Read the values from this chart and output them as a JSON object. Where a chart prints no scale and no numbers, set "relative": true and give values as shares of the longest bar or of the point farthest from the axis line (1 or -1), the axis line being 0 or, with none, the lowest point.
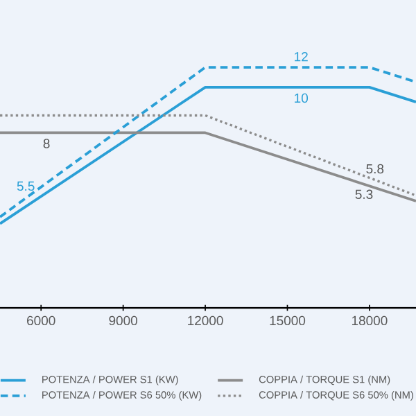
{
  "chart_data": {
    "type": "line",
    "relative": true,
    "x": [
      4500,
      12000,
      18000,
      19700
    ],
    "xlim": [
      4500,
      19700
    ],
    "xticks": [
      6000,
      9000,
      12000,
      15000,
      18000
    ],
    "series": [
      {
        "name": "POTENZA / POWER S1 (KW)",
        "color": "#2a9fd6",
        "line_style": "solid",
        "values": [
          0.35,
          0.917,
          0.917,
          0.856
        ]
      },
      {
        "name": "COPPIA / TORQUE S1 (NM)",
        "color": "#8c8c8c",
        "line_style": "solid",
        "x": [
          4500,
          12000,
          19700
        ],
        "values": [
          0.728,
          0.728,
          0.444
        ]
      },
      {
        "name": "POTENZA / POWER S6 50% (KW)",
        "color": "#2a9fd6",
        "line_style": "dashed",
        "values": [
          0.378,
          1.0,
          1.0,
          0.939
        ]
      },
      {
        "name": "COPPIA / TORQUE S6 50% (NM)",
        "color": "#8c8c8c",
        "line_style": "dotted",
        "x": [
          4500,
          12000,
          19700
        ],
        "values": [
          0.8,
          0.8,
          0.467
        ]
      }
    ],
    "annotations": [
      {
        "text": "12",
        "x": 15500,
        "y": 1.0
      },
      {
        "text": "10",
        "x": 15500,
        "y": 0.917
      },
      {
        "text": "8",
        "x": 6200,
        "y": 0.728
      },
      {
        "text": "5.5",
        "x": 6000,
        "y": 0.506
      },
      {
        "text": "5.8",
        "x": 18200,
        "y": 0.533
      },
      {
        "text": "5.3",
        "x": 17800,
        "y": 0.517
      }
    ],
    "marker": "none",
    "legend": "bottom"
  }
}
